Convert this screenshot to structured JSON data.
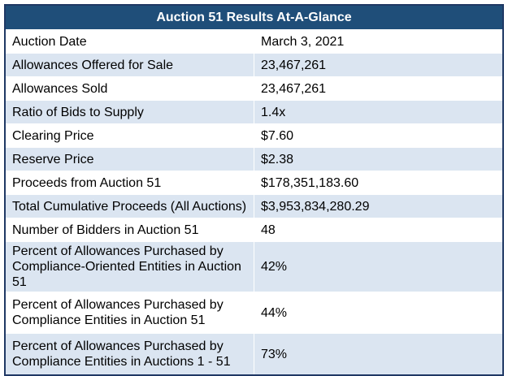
{
  "table": {
    "title": "Auction 51 Results At-A-Glance",
    "rows": [
      [
        "Auction Date",
        "March 3, 2021"
      ],
      [
        "Allowances Offered for Sale",
        "23,467,261"
      ],
      [
        "Allowances Sold",
        "23,467,261"
      ],
      [
        "Ratio of Bids to Supply",
        "1.4x"
      ],
      [
        "Clearing Price",
        "$7.60"
      ],
      [
        "Reserve Price",
        "$2.38"
      ],
      [
        "Proceeds from Auction 51",
        "$178,351,183.60"
      ],
      [
        "Total Cumulative Proceeds (All Auctions)",
        "$3,953,834,280.29"
      ],
      [
        "Number of Bidders in Auction 51",
        "48"
      ],
      [
        "Percent of Allowances Purchased by Compliance-Oriented Entities in Auction 51",
        "42%"
      ],
      [
        "Percent of Allowances Purchased by Compliance Entities in Auction 51",
        "44%"
      ],
      [
        "Percent of Allowances Purchased by Compliance Entities in Auctions 1 - 51",
        "73%"
      ]
    ]
  }
}
